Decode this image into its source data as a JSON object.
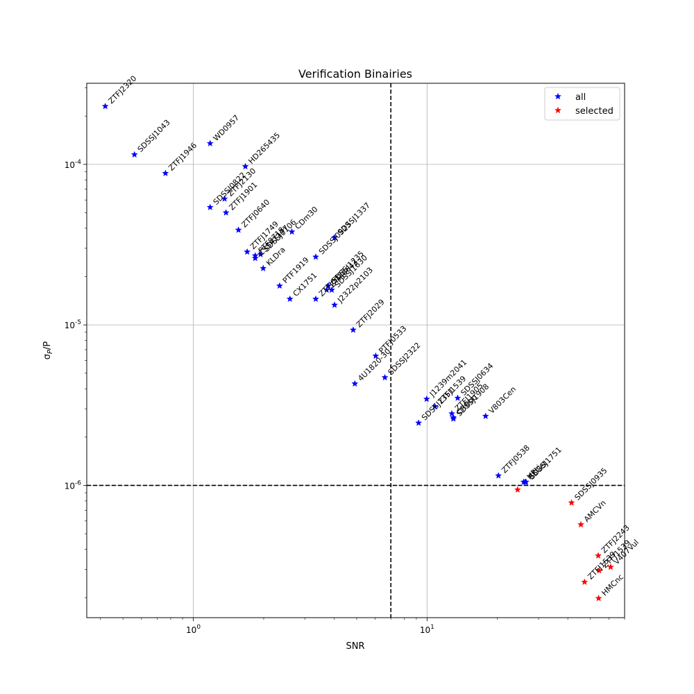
{
  "chart_data": {
    "type": "scatter",
    "title": "Verification Binairies",
    "xlabel": "SNR",
    "ylabel": "σ_P/P",
    "x_scale": "log",
    "y_scale": "log",
    "xlim": [
      0.35,
      70
    ],
    "ylim": [
      1.5e-07,
      0.00032
    ],
    "grid": true,
    "legend_position": "top-right",
    "x_ticks": [
      {
        "value": 1,
        "label": "10^0"
      },
      {
        "value": 10,
        "label": "10^1"
      }
    ],
    "y_ticks": [
      {
        "value": 1e-06,
        "label": "10^-6"
      },
      {
        "value": 1e-05,
        "label": "10^-5"
      },
      {
        "value": 0.0001,
        "label": "10^-4"
      }
    ],
    "thresholds": {
      "snr": 7,
      "sigma_p_over_p": 1e-06
    },
    "series": [
      {
        "name": "all",
        "color": "#0000ff",
        "points": [
          {
            "label": "ZTFJ2320",
            "x": 0.42,
            "y": 0.00023
          },
          {
            "label": "SDSSJ1043",
            "x": 0.56,
            "y": 0.000115
          },
          {
            "label": "ZTFJ1946",
            "x": 0.76,
            "y": 8.8e-05
          },
          {
            "label": "WD0957",
            "x": 1.18,
            "y": 0.000135
          },
          {
            "label": "HD265435",
            "x": 1.67,
            "y": 9.7e-05
          },
          {
            "label": "SDSSJ0822",
            "x": 1.18,
            "y": 5.4e-05
          },
          {
            "label": "ZTFJ2130",
            "x": 1.36,
            "y": 6.1e-05
          },
          {
            "label": "ZTFJ1901",
            "x": 1.38,
            "y": 5e-05
          },
          {
            "label": "ZTFJ0640",
            "x": 1.56,
            "y": 3.9e-05
          },
          {
            "label": "ZTFJ1749",
            "x": 1.7,
            "y": 2.85e-05
          },
          {
            "label": "PTF0718",
            "x": 1.84,
            "y": 2.7e-05
          },
          {
            "label": "SDSSJ0106",
            "x": 1.94,
            "y": 2.75e-05
          },
          {
            "label": "CDm30",
            "x": 2.64,
            "y": 3.8e-05
          },
          {
            "label": "CSS41177",
            "x": 1.84,
            "y": 2.6e-05
          },
          {
            "label": "KLDra",
            "x": 1.99,
            "y": 2.25e-05
          },
          {
            "label": "PTF1919",
            "x": 2.34,
            "y": 1.75e-05
          },
          {
            "label": "CX1751",
            "x": 2.59,
            "y": 1.45e-05
          },
          {
            "label": "SDSSJ0923",
            "x": 3.34,
            "y": 2.65e-05
          },
          {
            "label": "SDSSJ1337",
            "x": 4.02,
            "y": 3.5e-05
          },
          {
            "label": "ZTFJ0722",
            "x": 3.34,
            "y": 1.45e-05
          },
          {
            "label": "SDSSJ1235",
            "x": 3.78,
            "y": 1.75e-05
          },
          {
            "label": "ZTFJ0643",
            "x": 3.72,
            "y": 1.65e-05
          },
          {
            "label": "SDSSJ1630",
            "x": 3.91,
            "y": 1.65e-05
          },
          {
            "label": "J2322p2103",
            "x": 4.02,
            "y": 1.33e-05
          },
          {
            "label": "ZTFJ2029",
            "x": 4.83,
            "y": 9.3e-06
          },
          {
            "label": "PTFJ0533",
            "x": 6.03,
            "y": 6.4e-06
          },
          {
            "label": "4U1820-30",
            "x": 4.91,
            "y": 4.3e-06
          },
          {
            "label": "SDSSJ2322",
            "x": 6.6,
            "y": 4.7e-06
          },
          {
            "label": "J1239m2041",
            "x": 9.96,
            "y": 3.45e-06
          },
          {
            "label": "SDSSJ1351",
            "x": 9.2,
            "y": 2.45e-06
          },
          {
            "label": "ZTFJ1539",
            "x": 10.8,
            "y": 3.1e-06
          },
          {
            "label": "ZTFJ1905",
            "x": 12.76,
            "y": 2.8e-06
          },
          {
            "label": "SDSSJ0634",
            "x": 13.52,
            "y": 3.5e-06
          },
          {
            "label": "CRBoo",
            "x": 12.96,
            "y": 2.65e-06
          },
          {
            "label": "SDSSJ1908",
            "x": 12.96,
            "y": 2.6e-06
          },
          {
            "label": "V803Cen",
            "x": 17.8,
            "y": 2.7e-06
          },
          {
            "label": "ZTFJ0538",
            "x": 20.2,
            "y": 1.15e-06
          },
          {
            "label": "HPLib",
            "x": 25.9,
            "y": 1.05e-06
          },
          {
            "label": "ESCet",
            "x": 26.3,
            "y": 1.05e-06
          },
          {
            "label": "SDSSJ1751",
            "x": 26.5,
            "y": 1.05e-06
          }
        ]
      },
      {
        "name": "selected",
        "color": "#ff0000",
        "points": [
          {
            "label": "",
            "x": 24.4,
            "y": 9.4e-07
          },
          {
            "label": "SDSSJ0935",
            "x": 41.5,
            "y": 7.8e-07
          },
          {
            "label": "AMCVn",
            "x": 45.5,
            "y": 5.7e-07
          },
          {
            "label": "ZTFJ2243",
            "x": 54.0,
            "y": 3.65e-07
          },
          {
            "label": "ZTFJ1539",
            "x": 54.5,
            "y": 2.95e-07
          },
          {
            "label": "V407Vul",
            "x": 61.0,
            "y": 3.1e-07
          },
          {
            "label": "ZTFJ1539b",
            "x": 47.2,
            "y": 2.5e-07
          },
          {
            "label": "HMCnc",
            "x": 54.2,
            "y": 1.98e-07
          }
        ]
      }
    ],
    "legend": [
      {
        "name": "all",
        "color": "#0000ff"
      },
      {
        "name": "selected",
        "color": "#ff0000"
      }
    ]
  }
}
